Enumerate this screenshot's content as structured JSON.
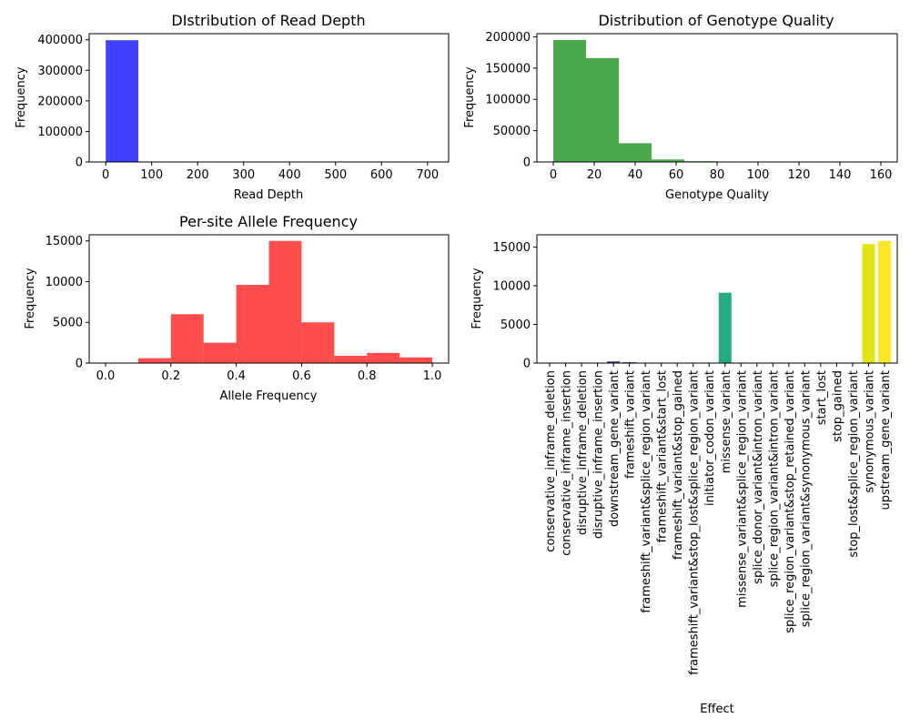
{
  "chart_data": [
    {
      "type": "bar",
      "title": "DIstribution of Read Depth",
      "xlabel": "Read Depth",
      "ylabel": "Frequency",
      "xlim": [
        -36,
        746
      ],
      "ylim": [
        0,
        420000
      ],
      "xticks": [
        0,
        100,
        200,
        300,
        400,
        500,
        600,
        700
      ],
      "yticks": [
        0,
        100000,
        200000,
        300000,
        400000
      ],
      "color": "#4040ff",
      "bins": [
        {
          "x0": 0,
          "x1": 71,
          "value": 398500
        },
        {
          "x0": 71,
          "x1": 142,
          "value": 1000
        },
        {
          "x0": 142,
          "x1": 213,
          "value": 700
        },
        {
          "x0": 213,
          "x1": 284,
          "value": 500
        },
        {
          "x0": 284,
          "x1": 355,
          "value": 150
        },
        {
          "x0": 355,
          "x1": 426,
          "value": 100
        },
        {
          "x0": 426,
          "x1": 497,
          "value": 80
        },
        {
          "x0": 497,
          "x1": 568,
          "value": 60
        },
        {
          "x0": 568,
          "x1": 639,
          "value": 40
        },
        {
          "x0": 639,
          "x1": 710,
          "value": 20
        }
      ]
    },
    {
      "type": "bar",
      "title": "Distribution of Genotype Quality",
      "xlabel": "Genotype Quality",
      "ylabel": "Frequency",
      "xlim": [
        -8,
        168
      ],
      "ylim": [
        0,
        205000
      ],
      "xticks": [
        0,
        20,
        40,
        60,
        80,
        100,
        120,
        140,
        160
      ],
      "yticks": [
        0,
        50000,
        100000,
        150000,
        200000
      ],
      "color": "#4caa4c",
      "bins": [
        {
          "x0": 0,
          "x1": 16,
          "value": 195000
        },
        {
          "x0": 16,
          "x1": 32,
          "value": 166000
        },
        {
          "x0": 32,
          "x1": 48,
          "value": 30000
        },
        {
          "x0": 48,
          "x1": 64,
          "value": 4000
        },
        {
          "x0": 64,
          "x1": 80,
          "value": 1200
        },
        {
          "x0": 80,
          "x1": 96,
          "value": 800
        },
        {
          "x0": 96,
          "x1": 112,
          "value": 600
        },
        {
          "x0": 112,
          "x1": 128,
          "value": 500
        },
        {
          "x0": 128,
          "x1": 144,
          "value": 400
        },
        {
          "x0": 144,
          "x1": 160,
          "value": 800
        }
      ]
    },
    {
      "type": "bar",
      "title": "Per-site Allele Frequency",
      "xlabel": "Allele Frequency",
      "ylabel": "Frequency",
      "xlim": [
        -0.05,
        1.05
      ],
      "ylim": [
        0,
        15750
      ],
      "xticks": [
        0.0,
        0.2,
        0.4,
        0.6,
        0.8,
        1.0
      ],
      "xtick_labels": [
        "0.0",
        "0.2",
        "0.4",
        "0.6",
        "0.8",
        "1.0"
      ],
      "yticks": [
        0,
        5000,
        10000,
        15000
      ],
      "color": "#ff4c4c",
      "bins": [
        {
          "x0": 0.0,
          "x1": 0.1,
          "value": 0
        },
        {
          "x0": 0.1,
          "x1": 0.2,
          "value": 600
        },
        {
          "x0": 0.2,
          "x1": 0.3,
          "value": 6000
        },
        {
          "x0": 0.3,
          "x1": 0.4,
          "value": 2500
        },
        {
          "x0": 0.4,
          "x1": 0.5,
          "value": 9600
        },
        {
          "x0": 0.5,
          "x1": 0.6,
          "value": 15000
        },
        {
          "x0": 0.6,
          "x1": 0.7,
          "value": 5000
        },
        {
          "x0": 0.7,
          "x1": 0.8,
          "value": 900
        },
        {
          "x0": 0.8,
          "x1": 0.9,
          "value": 1250
        },
        {
          "x0": 0.9,
          "x1": 1.0,
          "value": 700
        }
      ]
    },
    {
      "type": "bar",
      "title": "",
      "xlabel": "Effect",
      "ylabel": "Frequency",
      "ylim": [
        0,
        16600
      ],
      "yticks": [
        0,
        5000,
        10000,
        15000
      ],
      "categories": [
        "conservative_inframe_deletion",
        "conservative_inframe_insertion",
        "disruptive_inframe_deletion",
        "disruptive_inframe_insertion",
        "downstream_gene_variant",
        "frameshift_variant",
        "frameshift_variant&splice_region_variant",
        "frameshift_variant&start_lost",
        "frameshift_variant&stop_gained",
        "frameshift_variant&stop_lost&splice_region_variant",
        "initiator_codon_variant",
        "missense_variant",
        "missense_variant&splice_region_variant",
        "splice_donor_variant&intron_variant",
        "splice_region_variant&intron_variant",
        "splice_region_variant&stop_retained_variant",
        "splice_region_variant&synonymous_variant",
        "start_lost",
        "stop_gained",
        "stop_lost&splice_region_variant",
        "synonymous_variant",
        "upstream_gene_variant"
      ],
      "values": [
        5,
        10,
        15,
        5,
        220,
        120,
        15,
        5,
        10,
        5,
        5,
        9100,
        20,
        5,
        20,
        5,
        30,
        10,
        40,
        5,
        15400,
        15800
      ],
      "colors": [
        "#440154",
        "#481668",
        "#482878",
        "#443983",
        "#3e4989",
        "#375a8c",
        "#31688e",
        "#2b758e",
        "#26828e",
        "#21918c",
        "#1f9e89",
        "#25ab82",
        "#35b779",
        "#4ec36b",
        "#6ccd5a",
        "#8ed645",
        "#b5de2b",
        "#d8e219",
        "#e1e218",
        "#e8e419",
        "#e2e418",
        "#fde725"
      ]
    }
  ]
}
